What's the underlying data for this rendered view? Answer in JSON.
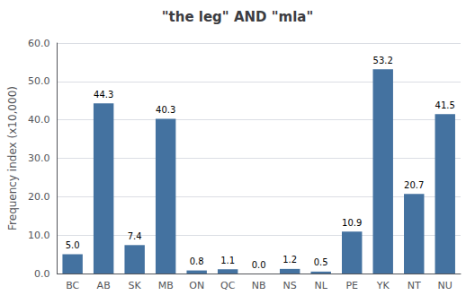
{
  "chart_data": {
    "type": "bar",
    "title": "\"the leg\" AND \"mla\"",
    "categories": [
      "BC",
      "AB",
      "SK",
      "MB",
      "ON",
      "QC",
      "NB",
      "NS",
      "NL",
      "PE",
      "YK",
      "NT",
      "NU"
    ],
    "values": [
      5.0,
      44.3,
      7.4,
      40.3,
      0.8,
      1.1,
      0.0,
      1.2,
      0.5,
      10.9,
      53.2,
      20.7,
      41.5
    ],
    "value_labels": [
      "5.0",
      "44.3",
      "7.4",
      "40.3",
      "0.8",
      "1.1",
      "0.0",
      "1.2",
      "0.5",
      "10.9",
      "53.2",
      "20.7",
      "41.5"
    ],
    "data_labels": true,
    "color": "#4472a0",
    "ylabel": "Frequency index (x10,000)",
    "ylim": [
      0,
      60.0
    ],
    "yticks": [
      {
        "value": 0,
        "label": "0.0"
      },
      {
        "value": 10,
        "label": "10.0"
      },
      {
        "value": 20,
        "label": "20.0"
      },
      {
        "value": 30,
        "label": "30.0"
      },
      {
        "value": 40,
        "label": "40.0"
      },
      {
        "value": 50,
        "label": "50.0"
      },
      {
        "value": 60,
        "label": "60.0"
      }
    ],
    "grid": true
  }
}
